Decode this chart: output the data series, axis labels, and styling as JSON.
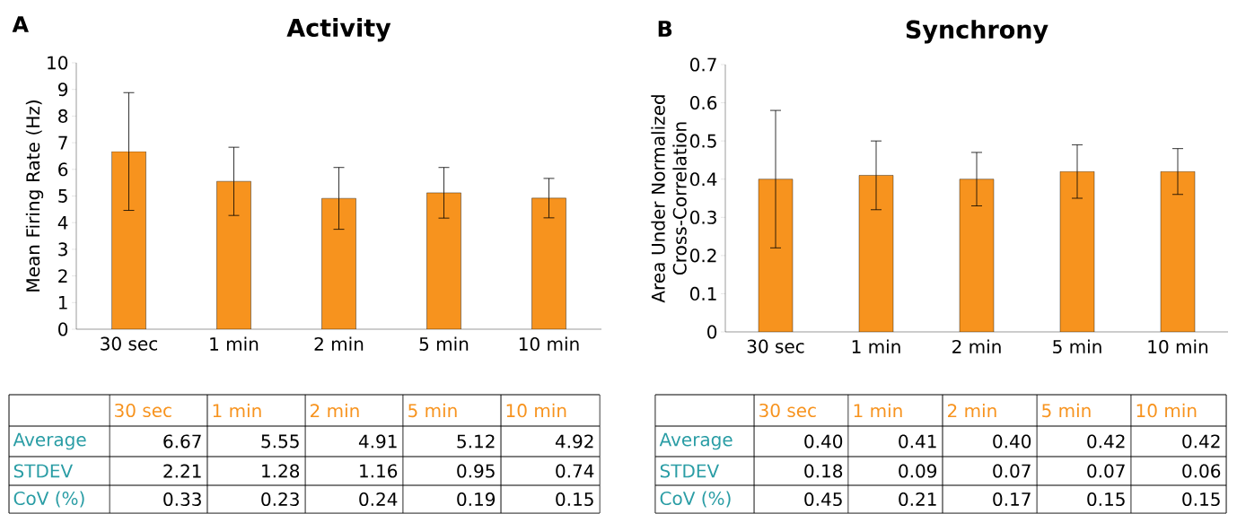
{
  "chart_data": [
    {
      "type": "bar",
      "title": "Activity",
      "ylabel": "Mean Firing Rate (Hz)",
      "categories": [
        "30 sec",
        "1 min",
        "2 min",
        "5 min",
        "10 min"
      ],
      "values": [
        6.67,
        5.55,
        4.91,
        5.12,
        4.92
      ],
      "errors": [
        2.21,
        1.28,
        1.16,
        0.95,
        0.74
      ],
      "value_labels": [
        "6.67",
        "5.55",
        "4.91",
        "5.12",
        "4.92"
      ],
      "color": "#f7931e",
      "ylim": [
        0,
        10
      ],
      "yticks": [
        0,
        1,
        2,
        3,
        4,
        5,
        6,
        7,
        8,
        9,
        10
      ],
      "annotations": [
        "A",
        "Average",
        "STDEV",
        "CoV (%)",
        "2.21",
        "1.28",
        "1.16",
        "0.95",
        "0.74",
        "0.33",
        "0.23",
        "0.24",
        "0.19",
        "0.15"
      ]
    },
    {
      "type": "bar",
      "title": "Synchrony",
      "ylabel": "Area Under Normalized Cross-Correlation",
      "categories": [
        "30 sec",
        "1 min",
        "2 min",
        "5 min",
        "10 min"
      ],
      "values": [
        0.4,
        0.41,
        0.4,
        0.42,
        0.42
      ],
      "errors": [
        0.18,
        0.09,
        0.07,
        0.07,
        0.06
      ],
      "value_labels": [
        "0.40",
        "0.41",
        "0.40",
        "0.42",
        "0.42"
      ],
      "color": "#f7931e",
      "ylim": [
        0,
        0.7
      ],
      "yticks": [
        0,
        0.1,
        0.2,
        0.3,
        0.4,
        0.5,
        0.6,
        0.7
      ],
      "annotations": [
        "B",
        "Average",
        "STDEV",
        "CoV (%)",
        "0.18",
        "0.09",
        "0.07",
        "0.07",
        "0.06",
        "0.45",
        "0.21",
        "0.17",
        "0.15",
        "0.15"
      ]
    }
  ]
}
